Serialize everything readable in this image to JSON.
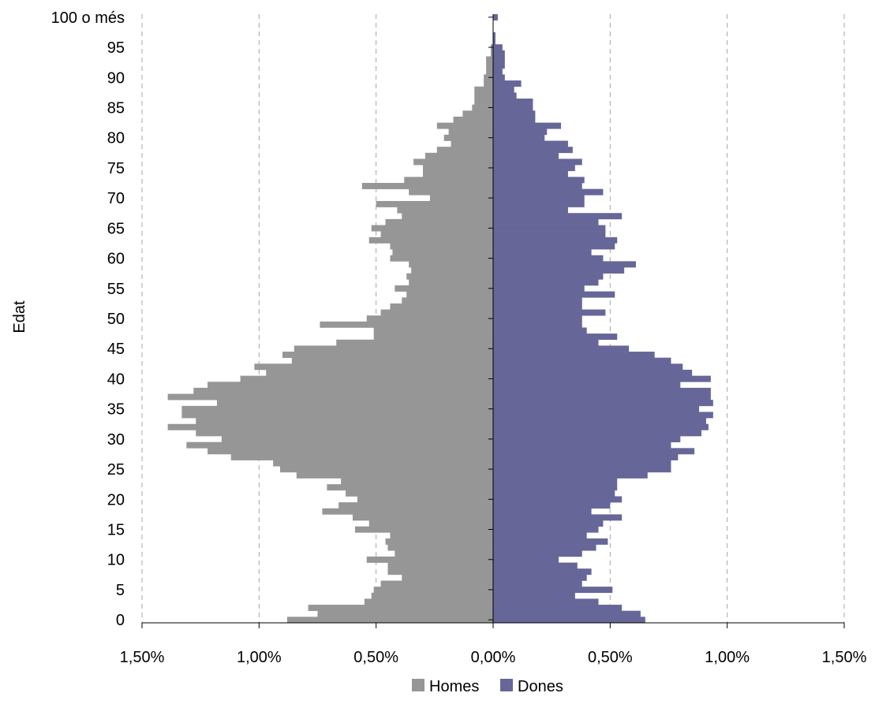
{
  "chart_data": {
    "type": "bar",
    "orientation": "horizontal",
    "subtype": "population-pyramid",
    "title": "",
    "ylabel": "Edat",
    "xlabel": "",
    "xlim": [
      -1.5,
      1.5
    ],
    "x_ticks": [
      -1.5,
      -1.0,
      -0.5,
      0.0,
      0.5,
      1.0,
      1.5
    ],
    "x_tick_labels": [
      "1,50%",
      "1,00%",
      "0,50%",
      "0,00%",
      "0,50%",
      "1,00%",
      "1,50%"
    ],
    "y_tick_labels": [
      "0",
      "5",
      "10",
      "15",
      "20",
      "25",
      "30",
      "35",
      "40",
      "45",
      "50",
      "55",
      "60",
      "65",
      "70",
      "75",
      "80",
      "85",
      "90",
      "95",
      "100 o més"
    ],
    "y_tick_ages": [
      0,
      5,
      10,
      15,
      20,
      25,
      30,
      35,
      40,
      45,
      50,
      55,
      60,
      65,
      70,
      75,
      80,
      85,
      90,
      95,
      100
    ],
    "grid": "vertical-dashed",
    "legend_position": "bottom",
    "colors": {
      "Homes": "#969696",
      "Dones": "#666699"
    },
    "categories": [
      0,
      1,
      2,
      3,
      4,
      5,
      6,
      7,
      8,
      9,
      10,
      11,
      12,
      13,
      14,
      15,
      16,
      17,
      18,
      19,
      20,
      21,
      22,
      23,
      24,
      25,
      26,
      27,
      28,
      29,
      30,
      31,
      32,
      33,
      34,
      35,
      36,
      37,
      38,
      39,
      40,
      41,
      42,
      43,
      44,
      45,
      46,
      47,
      48,
      49,
      50,
      51,
      52,
      53,
      54,
      55,
      56,
      57,
      58,
      59,
      60,
      61,
      62,
      63,
      64,
      65,
      66,
      67,
      68,
      69,
      70,
      71,
      72,
      73,
      74,
      75,
      76,
      77,
      78,
      79,
      80,
      81,
      82,
      83,
      84,
      85,
      86,
      87,
      88,
      89,
      90,
      91,
      92,
      93,
      94,
      95,
      96,
      97,
      98,
      99,
      100
    ],
    "series": [
      {
        "name": "Homes",
        "values": [
          0.88,
          0.75,
          0.79,
          0.55,
          0.52,
          0.51,
          0.48,
          0.39,
          0.45,
          0.45,
          0.54,
          0.42,
          0.45,
          0.46,
          0.44,
          0.59,
          0.53,
          0.6,
          0.73,
          0.66,
          0.58,
          0.63,
          0.71,
          0.65,
          0.84,
          0.91,
          0.94,
          1.12,
          1.22,
          1.31,
          1.16,
          1.27,
          1.39,
          1.27,
          1.33,
          1.33,
          1.18,
          1.39,
          1.28,
          1.22,
          1.08,
          0.97,
          1.02,
          0.86,
          0.9,
          0.85,
          0.67,
          0.51,
          0.51,
          0.74,
          0.54,
          0.48,
          0.44,
          0.39,
          0.37,
          0.42,
          0.36,
          0.37,
          0.35,
          0.36,
          0.44,
          0.43,
          0.44,
          0.53,
          0.48,
          0.52,
          0.46,
          0.39,
          0.41,
          0.5,
          0.27,
          0.36,
          0.56,
          0.38,
          0.3,
          0.3,
          0.34,
          0.29,
          0.24,
          0.18,
          0.21,
          0.19,
          0.24,
          0.17,
          0.13,
          0.09,
          0.08,
          0.08,
          0.08,
          0.04,
          0.04,
          0.03,
          0.03,
          0.03,
          0.01,
          0.01,
          0.0,
          0.0,
          0.0,
          0.0,
          0.0
        ]
      },
      {
        "name": "Dones",
        "values": [
          0.65,
          0.63,
          0.55,
          0.45,
          0.35,
          0.51,
          0.38,
          0.4,
          0.42,
          0.36,
          0.28,
          0.38,
          0.44,
          0.49,
          0.4,
          0.45,
          0.47,
          0.55,
          0.42,
          0.5,
          0.55,
          0.52,
          0.53,
          0.53,
          0.66,
          0.76,
          0.76,
          0.79,
          0.86,
          0.76,
          0.8,
          0.89,
          0.92,
          0.91,
          0.94,
          0.88,
          0.94,
          0.93,
          0.93,
          0.8,
          0.93,
          0.85,
          0.81,
          0.76,
          0.69,
          0.58,
          0.45,
          0.53,
          0.4,
          0.38,
          0.38,
          0.48,
          0.38,
          0.38,
          0.52,
          0.39,
          0.45,
          0.47,
          0.56,
          0.61,
          0.47,
          0.42,
          0.52,
          0.53,
          0.48,
          0.48,
          0.45,
          0.55,
          0.32,
          0.39,
          0.39,
          0.47,
          0.38,
          0.39,
          0.32,
          0.35,
          0.38,
          0.28,
          0.34,
          0.32,
          0.22,
          0.23,
          0.29,
          0.18,
          0.18,
          0.17,
          0.17,
          0.1,
          0.09,
          0.12,
          0.05,
          0.04,
          0.05,
          0.05,
          0.05,
          0.04,
          0.01,
          0.01,
          0.0,
          0.0,
          0.02
        ]
      }
    ]
  }
}
